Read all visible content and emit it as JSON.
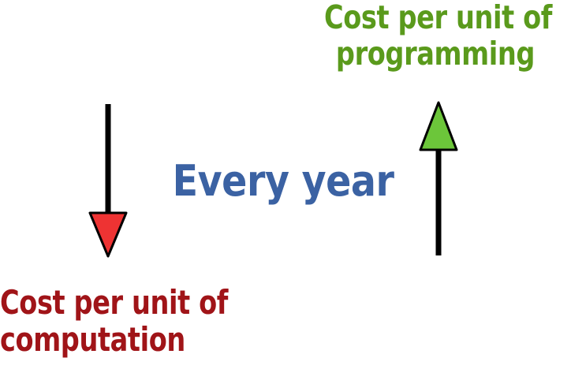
{
  "diagram": {
    "top_label": {
      "line1": "Cost per unit of",
      "line2": "programming"
    },
    "center_label": "Every year",
    "bottom_label": {
      "line1": "Cost per unit of",
      "line2": "computation"
    },
    "colors": {
      "top_label": "#5a9a1c",
      "bottom_label": "#a01418",
      "center_label": "#3b62a3",
      "up_arrowhead": "#6cc63a",
      "down_arrowhead": "#ee3333",
      "arrow_shaft": "#000000"
    }
  }
}
